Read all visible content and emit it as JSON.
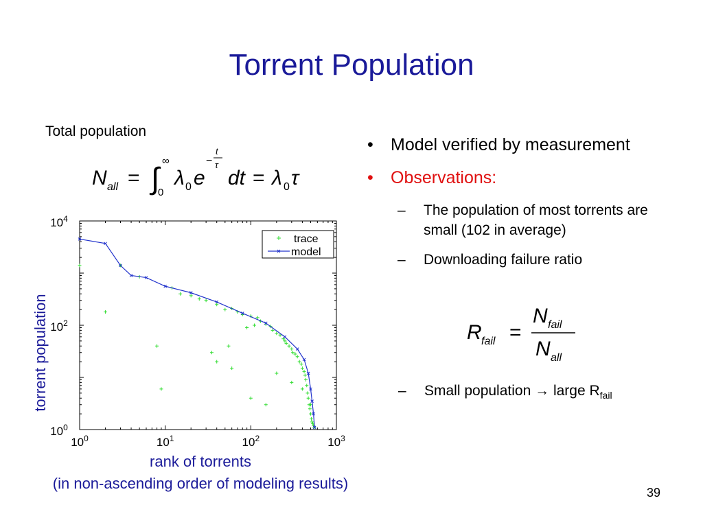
{
  "slide": {
    "title": "Torrent Population",
    "total_population_label": "Total population",
    "bullets": {
      "b1": "Model verified by measurement",
      "b2": "Observations:",
      "sub1": "The population of most torrents are small (102 in average)",
      "sub2": "Downloading failure ratio",
      "sub3_prefix": "Small population",
      "sub3_suffix": "large R",
      "sub3_subscript": "fail"
    },
    "page_number": "39",
    "colors": {
      "title": "#1a1a99",
      "axis_label": "#1a1a99",
      "observations": "#e01010",
      "trace": "#33dd33",
      "model": "#2233cc"
    }
  },
  "chart_data": {
    "type": "scatter",
    "xlabel": "rank of torrents",
    "xlabel2": "(in non-ascending order of modeling results)",
    "ylabel": "torrent population",
    "xscale": "log",
    "yscale": "log",
    "xlim": [
      1,
      1000
    ],
    "ylim": [
      1,
      10000
    ],
    "xticks": [
      {
        "base": "10",
        "exp": "0"
      },
      {
        "base": "10",
        "exp": "1"
      },
      {
        "base": "10",
        "exp": "2"
      },
      {
        "base": "10",
        "exp": "3"
      }
    ],
    "yticks": [
      {
        "base": "10",
        "exp": "0"
      },
      {
        "base": "10",
        "exp": "2"
      },
      {
        "base": "10",
        "exp": "4"
      }
    ],
    "legend": {
      "placement": "top-right",
      "entries": [
        "trace",
        "model"
      ]
    },
    "series": [
      {
        "name": "model",
        "x": [
          1,
          2,
          3,
          4,
          6,
          10,
          20,
          40,
          80,
          150,
          250,
          350,
          420,
          470,
          500,
          520,
          540,
          555
        ],
        "y": [
          4500,
          3700,
          1400,
          900,
          820,
          560,
          420,
          280,
          170,
          110,
          60,
          35,
          22,
          12,
          6,
          3.5,
          2,
          1.1
        ]
      },
      {
        "name": "trace",
        "x": [
          1,
          2,
          3,
          5,
          8,
          9,
          12,
          15,
          20,
          25,
          30,
          35,
          40,
          50,
          55,
          60,
          70,
          80,
          90,
          100,
          110,
          120,
          130,
          150,
          170,
          180,
          200,
          220,
          240,
          250,
          260,
          280,
          300,
          310,
          330,
          350,
          370,
          390,
          400,
          420,
          430,
          440,
          450,
          460,
          470,
          480,
          490,
          500,
          510,
          520,
          530,
          540,
          550,
          40,
          60,
          100,
          150,
          200,
          300,
          400,
          500
        ],
        "y": [
          1400,
          180,
          1400,
          850,
          40,
          6,
          520,
          400,
          370,
          320,
          300,
          30,
          250,
          200,
          40,
          210,
          180,
          160,
          90,
          150,
          100,
          140,
          120,
          105,
          95,
          80,
          70,
          65,
          55,
          50,
          45,
          40,
          35,
          30,
          28,
          25,
          20,
          18,
          15,
          13,
          11,
          9,
          7,
          5,
          4,
          3,
          2.5,
          2,
          1.6,
          1.4,
          1.3,
          1.2,
          1.1,
          20,
          15,
          4,
          3,
          12,
          8,
          6,
          3
        ]
      }
    ]
  }
}
